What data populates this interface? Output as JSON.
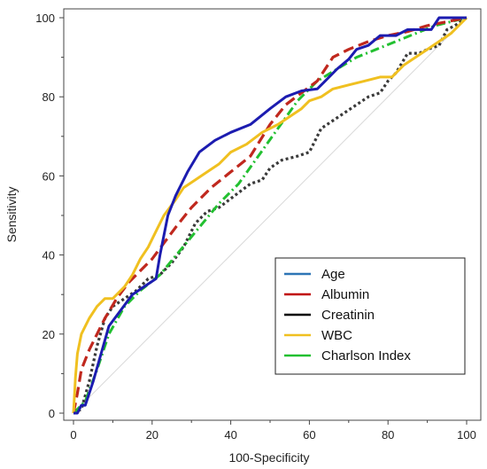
{
  "chart_data": {
    "type": "line",
    "title": "",
    "xlabel": "100-Specificity",
    "ylabel": "Sensitivity",
    "xlim": [
      0,
      100
    ],
    "ylim": [
      0,
      100
    ],
    "x_ticks": [
      0,
      20,
      40,
      60,
      80,
      100
    ],
    "y_ticks": [
      0,
      20,
      40,
      60,
      80,
      100
    ],
    "grid": false,
    "diagonal_reference_line": true,
    "legend_position": "bottom-right",
    "series": [
      {
        "name": "Age",
        "color": "#1c1cb0",
        "legend_color": "#2e75b6",
        "style": "solid",
        "points": [
          [
            0,
            0
          ],
          [
            1,
            0
          ],
          [
            2,
            2
          ],
          [
            3,
            2
          ],
          [
            5,
            8
          ],
          [
            7,
            15
          ],
          [
            9,
            22
          ],
          [
            12,
            26
          ],
          [
            15,
            30
          ],
          [
            18,
            32
          ],
          [
            21,
            34
          ],
          [
            22,
            40
          ],
          [
            24,
            50
          ],
          [
            26,
            55
          ],
          [
            29,
            61
          ],
          [
            32,
            66
          ],
          [
            36,
            69
          ],
          [
            40,
            71
          ],
          [
            45,
            73
          ],
          [
            50,
            77
          ],
          [
            54,
            80
          ],
          [
            58,
            81.5
          ],
          [
            62,
            82
          ],
          [
            64,
            84
          ],
          [
            67,
            87
          ],
          [
            70,
            89.5
          ],
          [
            72,
            92
          ],
          [
            75,
            93
          ],
          [
            78,
            95.5
          ],
          [
            82,
            95.5
          ],
          [
            85,
            97
          ],
          [
            88,
            97
          ],
          [
            91,
            97
          ],
          [
            93,
            100
          ],
          [
            96,
            100
          ],
          [
            100,
            100
          ]
        ]
      },
      {
        "name": "Albumin",
        "color": "#c0281e",
        "legend_color": "#c00000",
        "style": "dashed",
        "points": [
          [
            0,
            0
          ],
          [
            1,
            5
          ],
          [
            2,
            11
          ],
          [
            4,
            16
          ],
          [
            6,
            20
          ],
          [
            8,
            24
          ],
          [
            11,
            29
          ],
          [
            14,
            33
          ],
          [
            17,
            36
          ],
          [
            20,
            39
          ],
          [
            23,
            43
          ],
          [
            26,
            47
          ],
          [
            30,
            52
          ],
          [
            35,
            57
          ],
          [
            40,
            61
          ],
          [
            45,
            65
          ],
          [
            50,
            73
          ],
          [
            54,
            78
          ],
          [
            58,
            81
          ],
          [
            62,
            84
          ],
          [
            66,
            90
          ],
          [
            70,
            92
          ],
          [
            75,
            94
          ],
          [
            80,
            95.5
          ],
          [
            85,
            96.5
          ],
          [
            90,
            98
          ],
          [
            95,
            99
          ],
          [
            100,
            100
          ]
        ]
      },
      {
        "name": "Creatinin",
        "color": "#3a3a3a",
        "legend_color": "#000000",
        "style": "dotted",
        "points": [
          [
            0,
            0
          ],
          [
            2,
            1
          ],
          [
            4,
            8
          ],
          [
            6,
            17
          ],
          [
            8,
            24
          ],
          [
            10,
            27
          ],
          [
            13,
            29
          ],
          [
            16,
            31
          ],
          [
            19,
            34
          ],
          [
            22,
            35
          ],
          [
            25,
            38
          ],
          [
            28,
            42
          ],
          [
            31,
            48
          ],
          [
            34,
            51
          ],
          [
            37,
            52
          ],
          [
            41,
            55
          ],
          [
            45,
            58
          ],
          [
            48,
            59
          ],
          [
            50,
            62
          ],
          [
            53,
            64
          ],
          [
            57,
            65
          ],
          [
            60,
            66
          ],
          [
            63,
            72
          ],
          [
            66,
            74
          ],
          [
            69,
            76
          ],
          [
            72,
            78
          ],
          [
            75,
            80
          ],
          [
            78,
            81
          ],
          [
            80,
            84
          ],
          [
            82,
            86
          ],
          [
            85,
            91
          ],
          [
            88,
            91
          ],
          [
            90,
            92
          ],
          [
            93,
            93
          ],
          [
            95,
            97
          ],
          [
            97,
            98
          ],
          [
            100,
            100
          ]
        ]
      },
      {
        "name": "WBC",
        "color": "#f0c020",
        "legend_color": "#f0c020",
        "style": "solid",
        "points": [
          [
            0,
            0
          ],
          [
            0.5,
            9
          ],
          [
            1,
            15
          ],
          [
            2,
            20
          ],
          [
            3,
            22
          ],
          [
            4,
            24
          ],
          [
            6,
            27
          ],
          [
            8,
            29
          ],
          [
            10,
            29
          ],
          [
            13,
            32
          ],
          [
            15,
            35
          ],
          [
            17,
            39
          ],
          [
            19,
            42
          ],
          [
            21,
            46
          ],
          [
            23,
            50
          ],
          [
            26,
            54
          ],
          [
            28,
            57
          ],
          [
            31,
            59
          ],
          [
            34,
            61
          ],
          [
            37,
            63
          ],
          [
            40,
            66
          ],
          [
            44,
            68
          ],
          [
            48,
            71
          ],
          [
            52,
            73
          ],
          [
            55,
            75
          ],
          [
            58,
            77
          ],
          [
            60,
            79
          ],
          [
            63,
            80
          ],
          [
            66,
            82
          ],
          [
            70,
            83
          ],
          [
            74,
            84
          ],
          [
            78,
            85
          ],
          [
            81,
            85
          ],
          [
            84,
            88
          ],
          [
            87,
            90
          ],
          [
            90,
            92
          ],
          [
            93,
            94
          ],
          [
            96,
            96
          ],
          [
            100,
            100
          ]
        ]
      },
      {
        "name": "Charlson Index",
        "color": "#22c030",
        "legend_color": "#22c030",
        "style": "dashdot",
        "points": [
          [
            0,
            0
          ],
          [
            3,
            3
          ],
          [
            6,
            11
          ],
          [
            9,
            20
          ],
          [
            13,
            27
          ],
          [
            17,
            31
          ],
          [
            22,
            35
          ],
          [
            27,
            41
          ],
          [
            32,
            47
          ],
          [
            37,
            53
          ],
          [
            42,
            58
          ],
          [
            47,
            65
          ],
          [
            52,
            72
          ],
          [
            57,
            79
          ],
          [
            62,
            84
          ],
          [
            67,
            87
          ],
          [
            72,
            90
          ],
          [
            77,
            92
          ],
          [
            82,
            94
          ],
          [
            87,
            96
          ],
          [
            92,
            98
          ],
          [
            96,
            99
          ],
          [
            100,
            100
          ]
        ]
      }
    ]
  }
}
